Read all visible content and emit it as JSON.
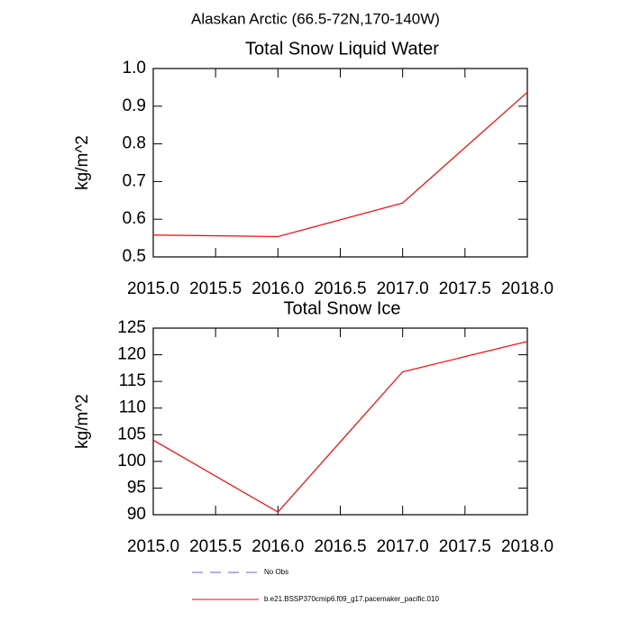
{
  "title": "Alaskan Arctic (66.5-72N,170-140W)",
  "chart_data": [
    {
      "type": "line",
      "title": "Total Snow Liquid Water",
      "ylabel": "kg/m^2",
      "x": [
        2015,
        2016,
        2017,
        2018
      ],
      "series": [
        {
          "name": "b.e21.BSSP370cmip6.f09_g17.pacemaker_pacific.010",
          "color": "#ff0000",
          "values": [
            0.558,
            0.554,
            0.643,
            0.937
          ]
        }
      ],
      "xlim": [
        2015,
        2018
      ],
      "xticks": [
        {
          "value": 2015,
          "label": "2015.0"
        },
        {
          "value": 2015.5,
          "label": "2015.5"
        },
        {
          "value": 2016,
          "label": "2016.0"
        },
        {
          "value": 2016.5,
          "label": "2016.5"
        },
        {
          "value": 2017,
          "label": "2017.0"
        },
        {
          "value": 2017.5,
          "label": "2017.5"
        },
        {
          "value": 2018,
          "label": "2018.0"
        }
      ],
      "ylim": [
        0.5,
        1.0
      ],
      "yticks": [
        0.5,
        0.6,
        0.7,
        0.8,
        0.9,
        {
          "value": 1.0,
          "label": "1.0"
        }
      ]
    },
    {
      "type": "line",
      "title": "Total Snow Ice",
      "ylabel": "kg/m^2",
      "x": [
        2015,
        2016,
        2017,
        2018
      ],
      "series": [
        {
          "name": "b.e21.BSSP370cmip6.f09_g17.pacemaker_pacific.010",
          "color": "#ff0000",
          "values": [
            104,
            90.5,
            116.8,
            122.5
          ]
        }
      ],
      "xlim": [
        2015,
        2018
      ],
      "xticks": [
        {
          "value": 2015,
          "label": "2015.0"
        },
        {
          "value": 2015.5,
          "label": "2015.5"
        },
        {
          "value": 2016,
          "label": "2016.0"
        },
        {
          "value": 2016.5,
          "label": "2016.5"
        },
        {
          "value": 2017,
          "label": "2017.0"
        },
        {
          "value": 2017.5,
          "label": "2017.5"
        },
        {
          "value": 2018,
          "label": "2018.0"
        }
      ],
      "ylim": [
        90,
        125
      ],
      "yticks": [
        90,
        95,
        100,
        105,
        110,
        115,
        120,
        125
      ]
    }
  ],
  "legend": [
    {
      "name": "No Obs",
      "color": "#6666cc",
      "dashed": true
    },
    {
      "name": "b.e21.BSSP370cmip6.f09_g17.pacemaker_pacific.010",
      "color": "#ff0000",
      "dashed": false
    }
  ]
}
